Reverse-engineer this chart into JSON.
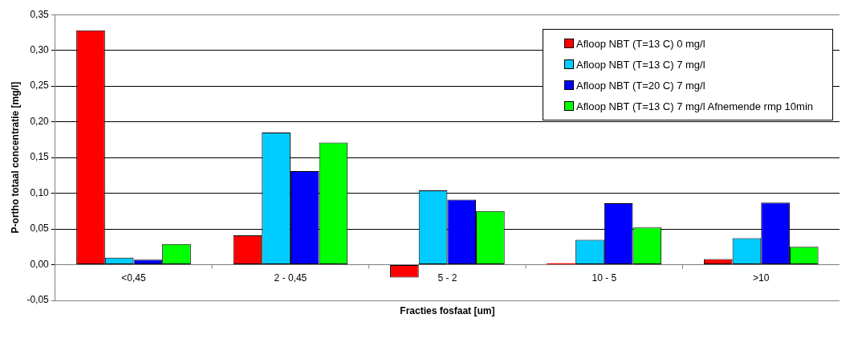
{
  "chart_data": {
    "type": "bar",
    "xlabel": "Fracties fosfaat [um]",
    "ylabel": "P-ortho totaal concentratie [mg/l]",
    "categories": [
      "<0,45",
      "2 - 0,45",
      "5 - 2",
      "10 - 5",
      ">10"
    ],
    "series": [
      {
        "name": "Afloop NBT (T=13 C) 0 mg/l",
        "color": "#ff0000",
        "values": [
          0.328,
          0.041,
          -0.018,
          0.002,
          0.008
        ]
      },
      {
        "name": "Afloop NBT (T=13 C) 7 mg/l",
        "color": "#00ccff",
        "values": [
          0.01,
          0.185,
          0.104,
          0.035,
          0.037
        ]
      },
      {
        "name": "Afloop NBT (T=20 C) 7 mg/l",
        "color": "#0000ff",
        "values": [
          0.007,
          0.131,
          0.091,
          0.086,
          0.087
        ]
      },
      {
        "name": "Afloop NBT (T=13 C) 7 mg/l Afnemende rmp 10min",
        "color": "#00ff00",
        "values": [
          0.029,
          0.171,
          0.075,
          0.052,
          0.025
        ]
      }
    ],
    "ylim": [
      -0.05,
      0.35
    ],
    "yticks": [
      {
        "value": -0.05,
        "label": "-0,05"
      },
      {
        "value": 0,
        "label": "0,00"
      },
      {
        "value": 0.05,
        "label": "0,05"
      },
      {
        "value": 0.1,
        "label": "0,10"
      },
      {
        "value": 0.15,
        "label": "0,15"
      },
      {
        "value": 0.2,
        "label": "0,20"
      },
      {
        "value": 0.25,
        "label": "0,25"
      },
      {
        "value": 0.3,
        "label": "0,30"
      },
      {
        "value": 0.35,
        "label": "0,35"
      }
    ],
    "grid": "y",
    "legend": "top right"
  }
}
